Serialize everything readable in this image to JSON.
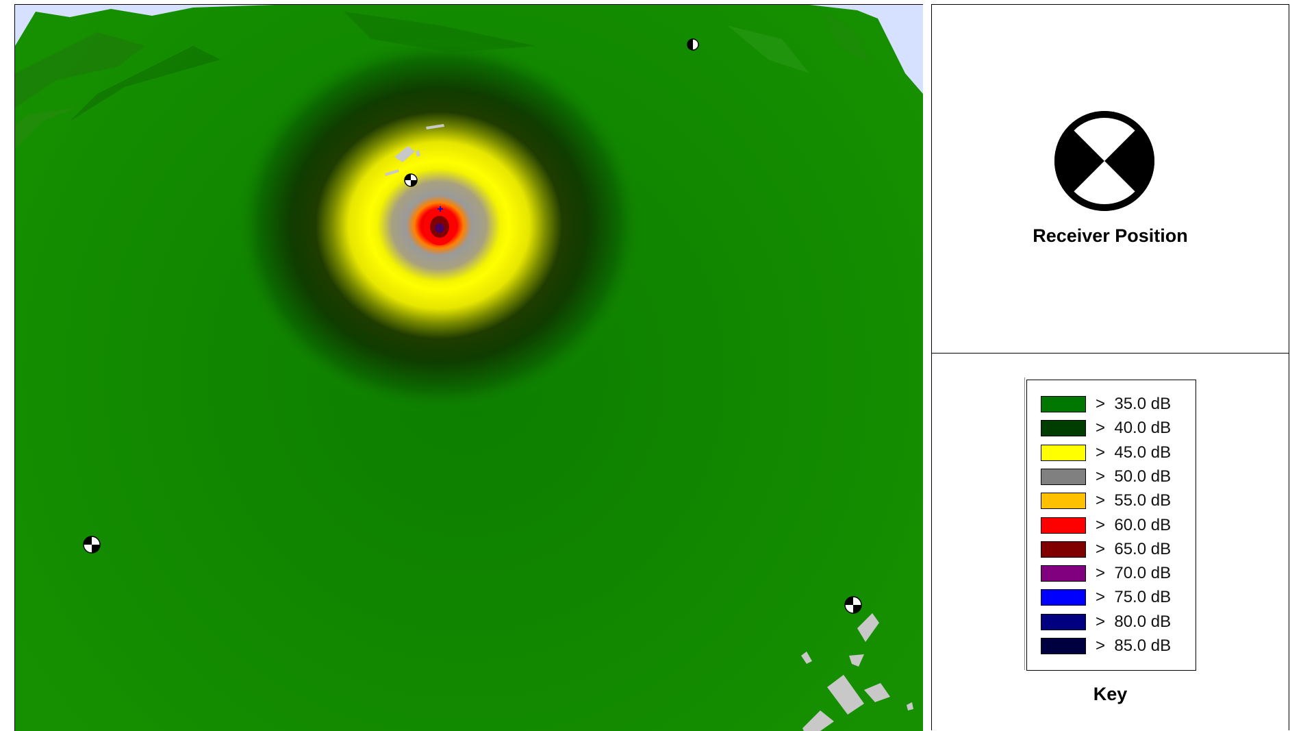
{
  "receiver_panel": {
    "caption": "Receiver Position",
    "symbol_icon": "receiver-position-icon"
  },
  "key_panel": {
    "caption": "Key",
    "entries": [
      {
        "label": ">  35.0 dB",
        "color": "#007800"
      },
      {
        "label": ">  40.0 dB",
        "color": "#003d00"
      },
      {
        "label": ">  45.0 dB",
        "color": "#ffff00"
      },
      {
        "label": ">  50.0 dB",
        "color": "#808080"
      },
      {
        "label": ">  55.0 dB",
        "color": "#ffc000"
      },
      {
        "label": ">  60.0 dB",
        "color": "#ff0000"
      },
      {
        "label": ">  65.0 dB",
        "color": "#800000"
      },
      {
        "label": ">  70.0 dB",
        "color": "#800080"
      },
      {
        "label": ">  75.0 dB",
        "color": "#0000ff"
      },
      {
        "label": ">  80.0 dB",
        "color": "#000080"
      },
      {
        "label": ">  85.0 dB",
        "color": "#000040"
      }
    ]
  },
  "map": {
    "terrain_color": "#138a00",
    "sky_color": "#d6e0ff",
    "building_color": "#c8c8c8",
    "source_icon": "noise-source-icon",
    "receiver_icon": "receiver-position-icon"
  }
}
